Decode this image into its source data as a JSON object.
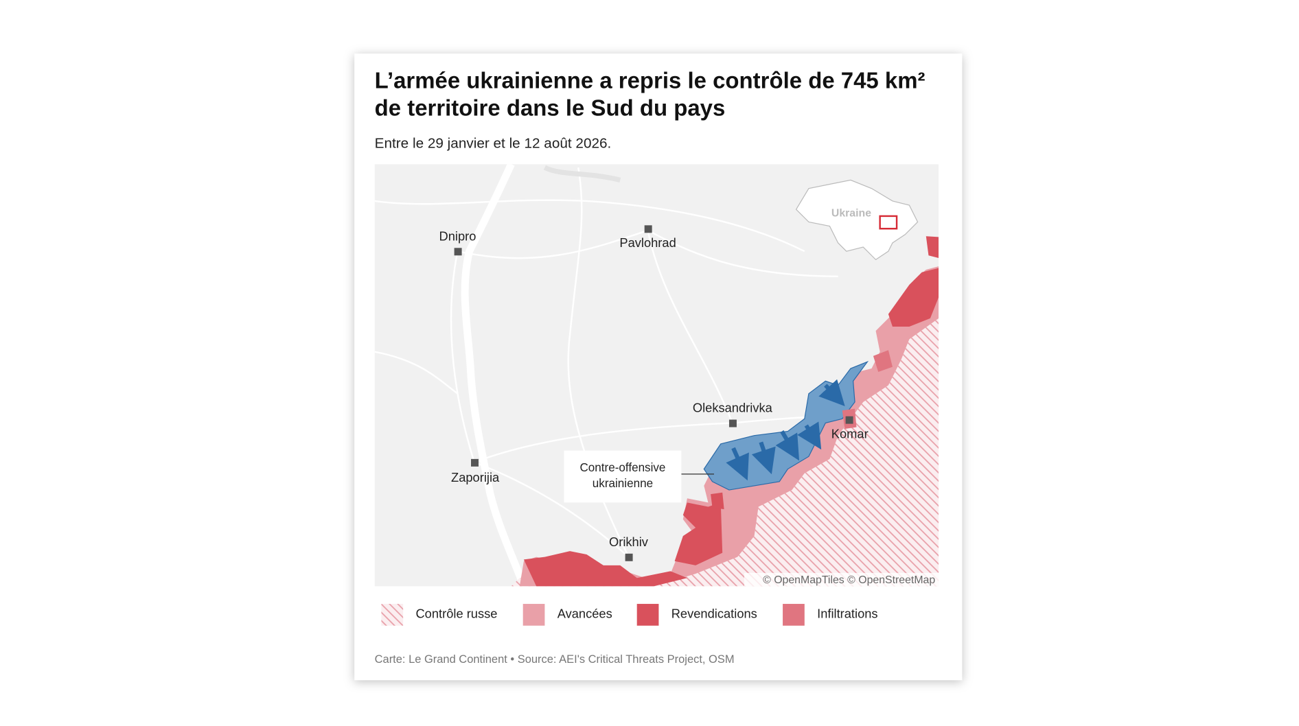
{
  "title": [
    "L’armée ukrainienne a repris le contrôle de 745 km²",
    "de territoire dans le Sud du pays"
  ],
  "subtitle": "Entre le 29 janvier et le 12 août 2026.",
  "map": {
    "cities": [
      "Dnipro",
      "Pavlohrad",
      "Oleksandrivka",
      "Komar",
      "Zaporijia",
      "Orikhiv"
    ],
    "inset_label": "Ukraine",
    "annotation": [
      "Contre-offensive",
      "ukrainienne"
    ],
    "attribution": "© OpenMapTiles © OpenStreetMap"
  },
  "legend": [
    "Contrôle russe",
    "Avancées",
    "Revendications",
    "Infiltrations"
  ],
  "source": "Carte: Le Grand Continent • Source: AEI's Critical Threats Project, OSM"
}
